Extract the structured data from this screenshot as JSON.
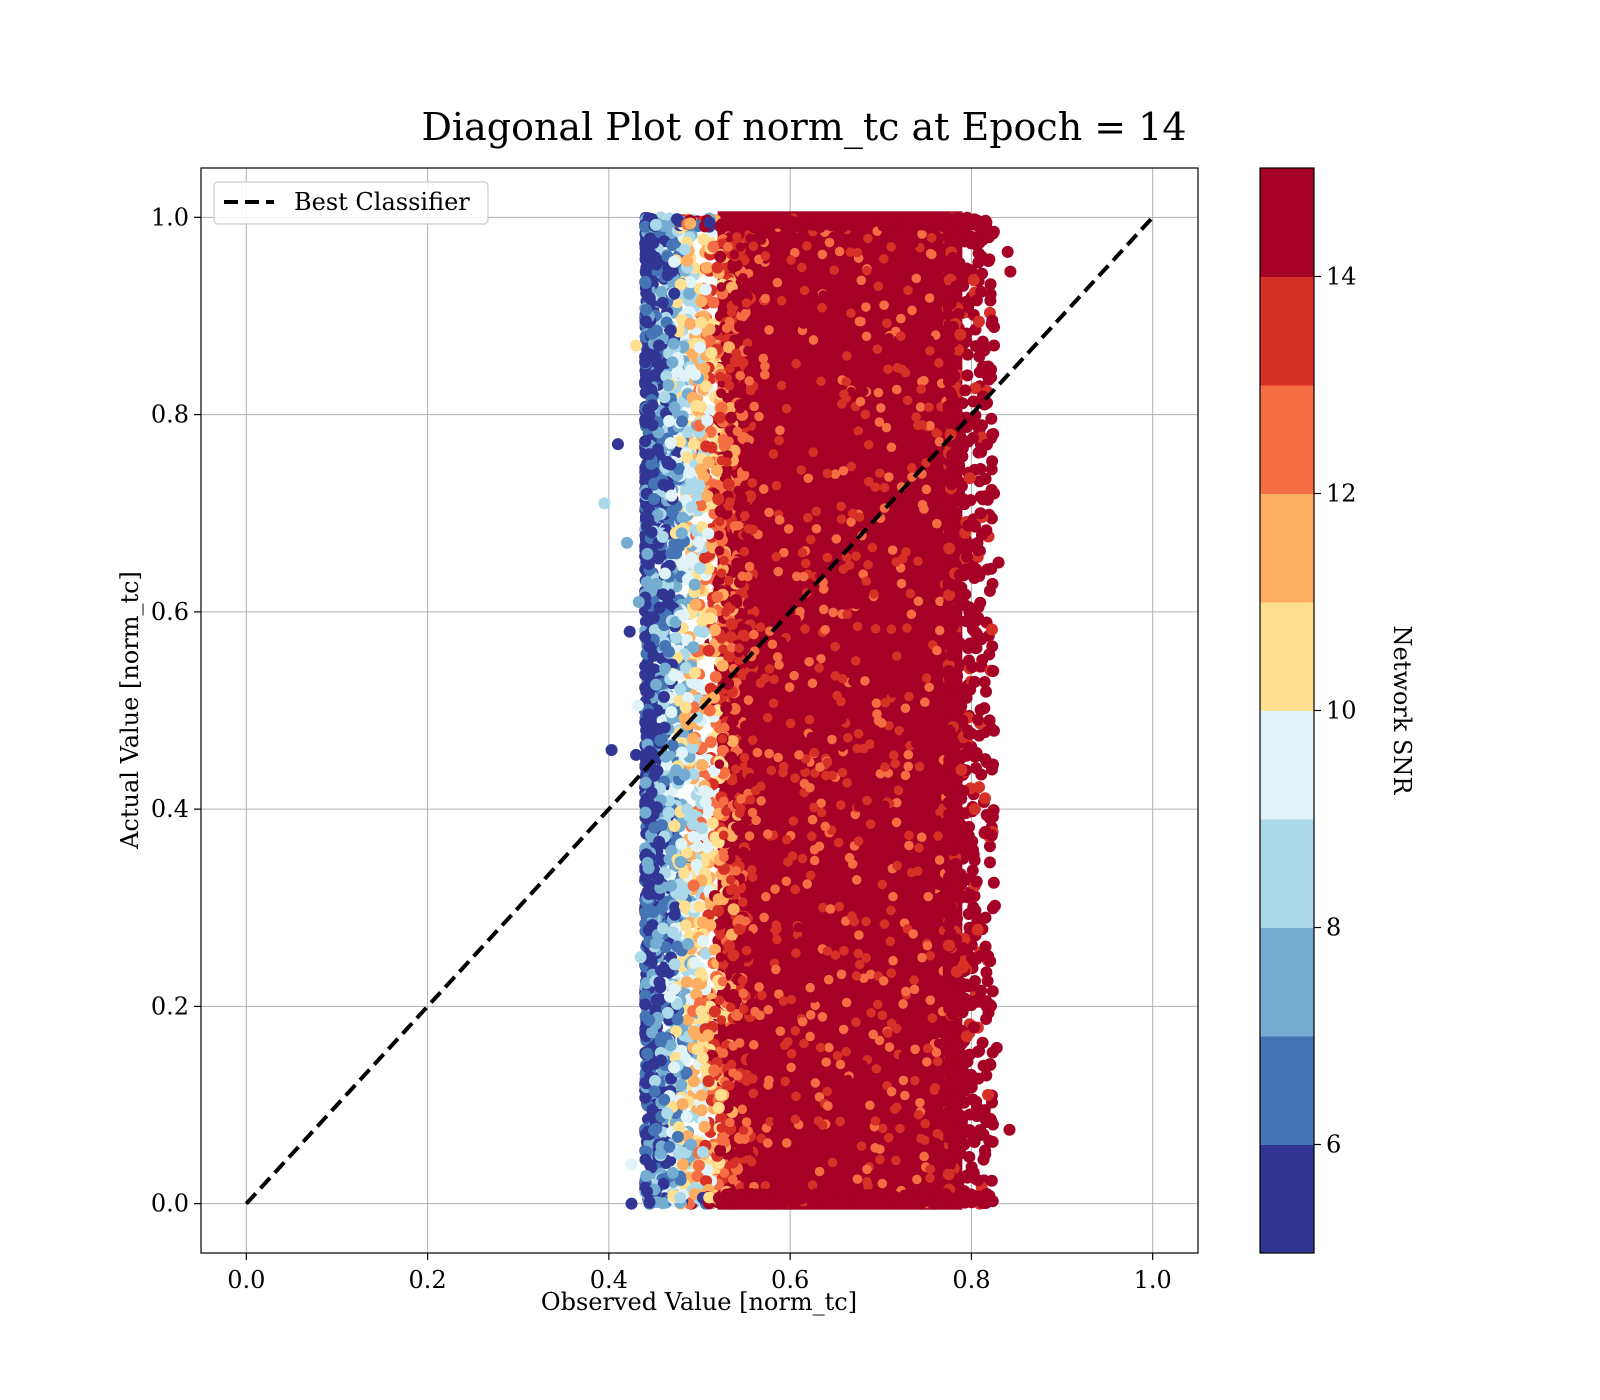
{
  "chart_data": {
    "type": "scatter",
    "title": "Diagonal Plot of norm_tc at Epoch = 14",
    "xlabel": "Observed Value [norm_tc]",
    "ylabel": "Actual Value [norm_tc]",
    "xlim": [
      -0.05,
      1.05
    ],
    "ylim": [
      -0.05,
      1.05
    ],
    "xticks": [
      "0.0",
      "0.2",
      "0.4",
      "0.6",
      "0.8",
      "1.0"
    ],
    "yticks": [
      "0.0",
      "0.2",
      "0.4",
      "0.6",
      "0.8",
      "1.0"
    ],
    "grid": true,
    "legend": {
      "position": "top-left",
      "entries": [
        {
          "label": "Best Classifier",
          "style": "black dashed line"
        }
      ]
    },
    "reference_line": {
      "x": [
        0.0,
        1.0
      ],
      "y": [
        0.0,
        1.0
      ],
      "color": "#000000",
      "style": "dashed"
    },
    "colorbar": {
      "label": "Network SNR",
      "range": [
        5,
        15
      ],
      "ticks": [
        "6",
        "8",
        "10",
        "12",
        "14"
      ],
      "colormap": "RdYlBu_r",
      "colors": [
        "#313695",
        "#4575b4",
        "#74add1",
        "#abd9e9",
        "#e0f3f8",
        "#fee090",
        "#fdae61",
        "#f46d43",
        "#d73027",
        "#a50026"
      ]
    },
    "point_cloud": {
      "description_in_data_units": "dense band of points",
      "x_core_range": [
        0.5,
        0.8
      ],
      "x_full_range": [
        0.39,
        0.84
      ],
      "y_range": [
        0.0,
        1.0
      ],
      "dominant_color": "#a50026"
    },
    "outliers": [
      {
        "x": 0.41,
        "y": 0.77,
        "snr": 5.5
      },
      {
        "x": 0.395,
        "y": 0.71,
        "snr": 8.5
      },
      {
        "x": 0.42,
        "y": 0.67,
        "snr": 7.5
      },
      {
        "x": 0.403,
        "y": 0.46,
        "snr": 5.5
      },
      {
        "x": 0.423,
        "y": 0.58,
        "snr": 5.5
      },
      {
        "x": 0.433,
        "y": 0.61,
        "snr": 7.5
      },
      {
        "x": 0.432,
        "y": 0.505,
        "snr": 9.5
      },
      {
        "x": 0.43,
        "y": 0.455,
        "snr": 5.5
      },
      {
        "x": 0.435,
        "y": 0.25,
        "snr": 8.5
      },
      {
        "x": 0.425,
        "y": 0.04,
        "snr": 9.5
      },
      {
        "x": 0.425,
        "y": 0.0,
        "snr": 5.5
      },
      {
        "x": 0.43,
        "y": 0.87,
        "snr": 10.5
      },
      {
        "x": 0.83,
        "y": 0.65,
        "snr": 14.5
      },
      {
        "x": 0.843,
        "y": 0.945,
        "snr": 14.5
      },
      {
        "x": 0.84,
        "y": 0.965,
        "snr": 14.5
      },
      {
        "x": 0.825,
        "y": 0.72,
        "snr": 14.5
      },
      {
        "x": 0.842,
        "y": 0.075,
        "snr": 14.5
      },
      {
        "x": 0.828,
        "y": 0.158,
        "snr": 14.5
      },
      {
        "x": 0.826,
        "y": 0.302,
        "snr": 14.5
      },
      {
        "x": 0.823,
        "y": 0.565,
        "snr": 14.5
      },
      {
        "x": 0.82,
        "y": 0.49,
        "snr": 14.5
      },
      {
        "x": 0.825,
        "y": 0.87,
        "snr": 14.5
      },
      {
        "x": 0.823,
        "y": 0.78,
        "snr": 14.5
      },
      {
        "x": 0.81,
        "y": 0.7,
        "snr": 14.5
      }
    ]
  }
}
